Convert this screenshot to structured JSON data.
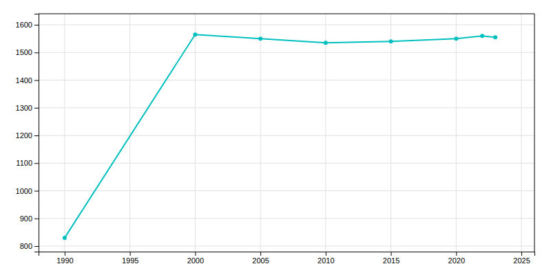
{
  "chart_data": {
    "type": "line",
    "x": [
      1990,
      2000,
      2005,
      2010,
      2015,
      2020,
      2022,
      2023
    ],
    "values": [
      830,
      1565,
      1550,
      1535,
      1540,
      1550,
      1560,
      1555
    ],
    "color": "#00BFBF",
    "marker": "circle",
    "xlim": [
      1988,
      2026
    ],
    "ylim": [
      780,
      1640
    ],
    "xticks": [
      1990,
      1995,
      2000,
      2005,
      2010,
      2015,
      2020,
      2025
    ],
    "yticks": [
      800,
      900,
      1000,
      1100,
      1200,
      1300,
      1400,
      1500,
      1600
    ],
    "grid": true
  }
}
